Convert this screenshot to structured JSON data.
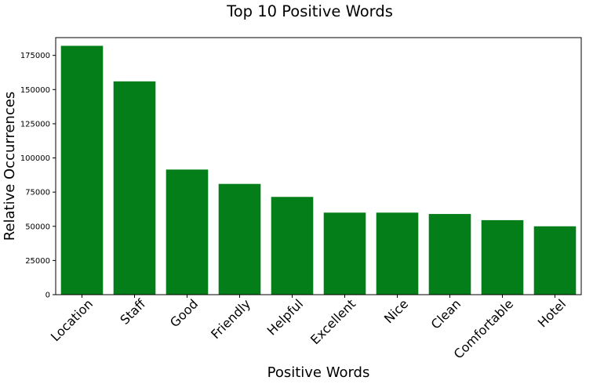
{
  "chart_data": {
    "type": "bar",
    "title": "Top 10 Positive Words",
    "xlabel": "Positive Words",
    "ylabel": "Relative Occurrences",
    "categories": [
      "Location",
      "Staff",
      "Good",
      "Friendly",
      "Helpful",
      "Excellent",
      "Nice",
      "Clean",
      "Comfortable",
      "Hotel"
    ],
    "values": [
      182000,
      156000,
      91500,
      81000,
      71500,
      60000,
      60000,
      59000,
      54500,
      50000
    ],
    "ylim": [
      0,
      188000
    ],
    "yticks": [
      0,
      25000,
      50000,
      75000,
      100000,
      125000,
      150000,
      175000
    ],
    "ytick_labels": [
      "0",
      "25000",
      "50000",
      "75000",
      "100000",
      "125000",
      "150000",
      "175000"
    ],
    "grid": false,
    "legend": "none",
    "bar_color": "#037e18"
  }
}
